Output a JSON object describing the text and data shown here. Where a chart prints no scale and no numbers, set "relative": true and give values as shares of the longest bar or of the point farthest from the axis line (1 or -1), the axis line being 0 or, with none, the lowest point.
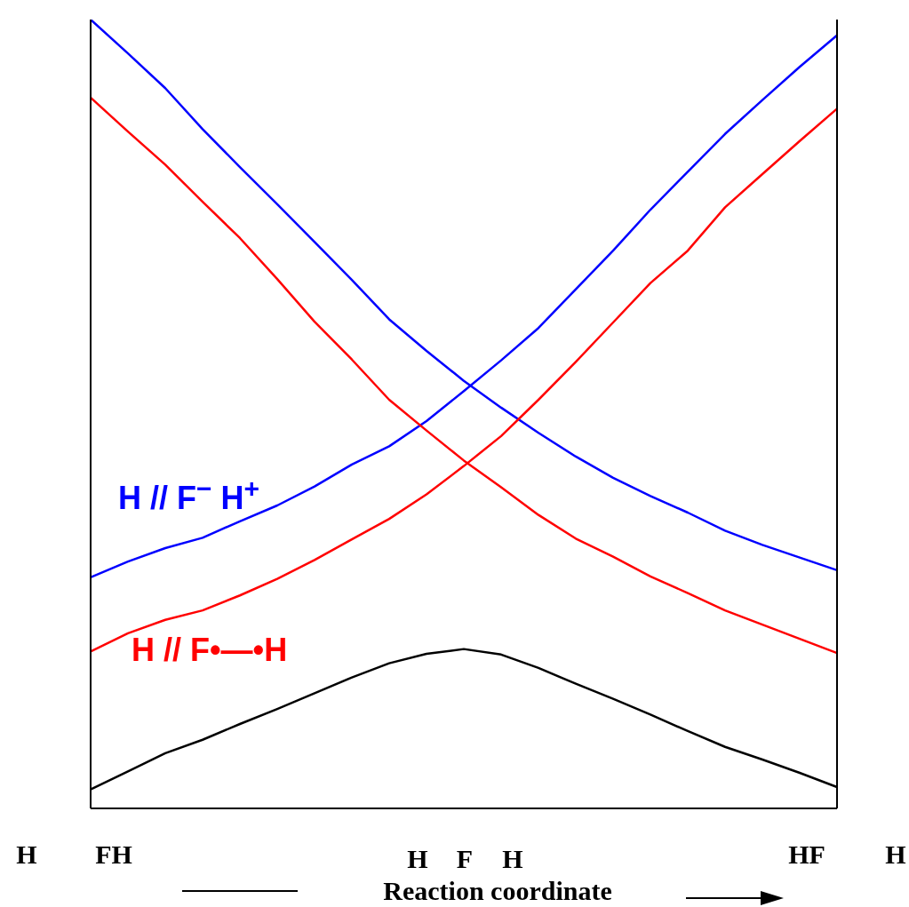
{
  "chart_data": {
    "type": "line",
    "relative": true,
    "xlabel": "Reaction coordinate",
    "categories": [
      null,
      null,
      null,
      null,
      null,
      null,
      null,
      null,
      null,
      null,
      null,
      null,
      null,
      null,
      null,
      null,
      null,
      null,
      null,
      null,
      null
    ],
    "series": [
      {
        "color": "#0000ff",
        "values": [
          1.0,
          0.957,
          0.913,
          0.861,
          0.813,
          0.766,
          0.718,
          0.67,
          0.62,
          0.58,
          0.542,
          0.508,
          0.476,
          0.446,
          0.419,
          0.396,
          0.375,
          0.352,
          0.334,
          0.318,
          0.302
        ]
      },
      {
        "name": "H // F$^{−}$ H$^{+}$",
        "color": "#0000ff",
        "values": [
          0.293,
          0.313,
          0.33,
          0.343,
          0.364,
          0.384,
          0.408,
          0.436,
          0.459,
          0.491,
          0.529,
          0.568,
          0.609,
          0.658,
          0.707,
          0.759,
          0.807,
          0.855,
          0.898,
          0.94,
          0.98
        ]
      },
      {
        "color": "#ff0000",
        "values": [
          0.901,
          0.858,
          0.816,
          0.769,
          0.723,
          0.671,
          0.617,
          0.569,
          0.518,
          0.479,
          0.441,
          0.407,
          0.372,
          0.342,
          0.319,
          0.294,
          0.273,
          0.251,
          0.233,
          0.215,
          0.197
        ]
      },
      {
        "name": "H // F•—•H",
        "color": "#ff0000",
        "values": [
          0.199,
          0.222,
          0.239,
          0.251,
          0.27,
          0.291,
          0.315,
          0.341,
          0.367,
          0.398,
          0.434,
          0.472,
          0.518,
          0.566,
          0.616,
          0.666,
          0.707,
          0.762,
          0.804,
          0.846,
          0.887
        ]
      },
      {
        "color": "#000000",
        "values": [
          0.024,
          0.047,
          0.07,
          0.087,
          0.107,
          0.126,
          0.146,
          0.166,
          0.184,
          0.196,
          0.202,
          0.195,
          0.178,
          0.158,
          0.139,
          0.119,
          0.098,
          0.078,
          0.062,
          0.045,
          0.027
        ]
      }
    ],
    "annotations": [
      "H",
      "FH",
      "H",
      "F",
      "H",
      "HF",
      "H"
    ]
  }
}
